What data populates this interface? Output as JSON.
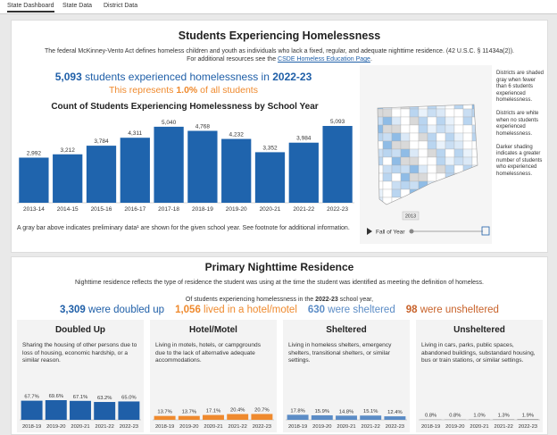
{
  "tabs": [
    "State Dashboard",
    "State Data",
    "District Data"
  ],
  "overview": {
    "title": "Students Experiencing Homelessness",
    "description": "The federal McKinney-Vento Act defines homeless children and youth as individuals who lack a fixed, regular, and adequate nighttime residence. (42 U.S.C. § 11434a(2)).",
    "resources_text": "For additional resources see the",
    "resources_link": "CSDE Homeless Education Page",
    "count": "5,093",
    "count_text": "students experienced homelessness in",
    "year": "2022-23",
    "share_prefix": "This represents",
    "share": "1.0%",
    "share_suffix": "of all students",
    "footnote": "A gray bar above indicates preliminary data¹ are shown for the given school year. See footnote for additional information."
  },
  "map": {
    "notes": [
      "Districts are shaded gray when fewer than 6 students experienced homelessness.",
      "Districts are white when no students experienced homelessness.",
      "Darker shading indicates a greater number of students who experienced homelessness."
    ],
    "slider_value": "2013",
    "slider_label": "Fall of Year"
  },
  "residence": {
    "title": "Primary Nighttime Residence",
    "description": "Nighttime residence reflects the type of residence the student was using at the time the student was identified as meeting the definition of homeless.",
    "intro_prefix": "Of students experiencing homelessness in the",
    "intro_year": "2022-23",
    "intro_suffix": "school year,",
    "stats": [
      {
        "number": "3,309",
        "text": "were doubled up",
        "color": "#1f5fa8"
      },
      {
        "number": "1,056",
        "text": "lived in a hotel/motel",
        "color": "#ef8a2e"
      },
      {
        "number": "630",
        "text": "were sheltered",
        "color": "#5b8cc6"
      },
      {
        "number": "98",
        "text": "were unsheltered",
        "color": "#c8622a"
      }
    ]
  },
  "chart_data": [
    {
      "type": "bar",
      "title": "Count of Students Experiencing Homelessness by School Year",
      "categories": [
        "2013-14",
        "2014-15",
        "2015-16",
        "2016-17",
        "2017-18",
        "2018-19",
        "2019-20",
        "2020-21",
        "2021-22",
        "2022-23"
      ],
      "values": [
        2992,
        3212,
        3784,
        4311,
        5040,
        4768,
        4232,
        3352,
        3984,
        5093
      ],
      "value_labels": [
        "2,992",
        "3,212",
        "3,784",
        "4,311",
        "5,040",
        "4,768",
        "4,232",
        "3,352",
        "3,984",
        "5,093"
      ],
      "color": "#1f64ad"
    },
    {
      "type": "bar",
      "title": "Doubled Up",
      "description": "Sharing the housing of other persons due to loss of housing, economic hardship, or a similar reason.",
      "categories": [
        "2018-19",
        "2019-20",
        "2020-21",
        "2021-22",
        "2022-23"
      ],
      "values": [
        67.7,
        69.6,
        67.1,
        63.2,
        65.0
      ],
      "value_labels": [
        "67.7%",
        "69.6%",
        "67.1%",
        "63.2%",
        "65.0%"
      ],
      "color": "#1f5fa8"
    },
    {
      "type": "bar",
      "title": "Hotel/Motel",
      "description": "Living in motels, hotels, or campgrounds due to the lack of alternative adequate accommodations.",
      "categories": [
        "2018-19",
        "2019-20",
        "2020-21",
        "2021-22",
        "2022-23"
      ],
      "values": [
        13.7,
        13.7,
        17.1,
        20.4,
        20.7
      ],
      "value_labels": [
        "13.7%",
        "13.7%",
        "17.1%",
        "20.4%",
        "20.7%"
      ],
      "color": "#ef8a2e"
    },
    {
      "type": "bar",
      "title": "Sheltered",
      "description": "Living in homeless shelters, emergency shelters, transitional shelters, or similar settings.",
      "categories": [
        "2018-19",
        "2019-20",
        "2020-21",
        "2021-22",
        "2022-23"
      ],
      "values": [
        17.8,
        15.9,
        14.8,
        15.1,
        12.4
      ],
      "value_labels": [
        "17.8%",
        "15.9%",
        "14.8%",
        "15.1%",
        "12.4%"
      ],
      "color": "#5b8cc6"
    },
    {
      "type": "bar",
      "title": "Unsheltered",
      "description": "Living in cars, parks, public spaces, abandoned buildings, substandard housing, bus or train stations, or similar settings.",
      "categories": [
        "2018-19",
        "2019-20",
        "2020-21",
        "2021-22",
        "2022-23"
      ],
      "values": [
        0.8,
        0.8,
        1.0,
        1.3,
        1.9
      ],
      "value_labels": [
        "0.8%",
        "0.8%",
        "1.0%",
        "1.3%",
        "1.9%"
      ],
      "color": "#7a7a7a"
    }
  ]
}
